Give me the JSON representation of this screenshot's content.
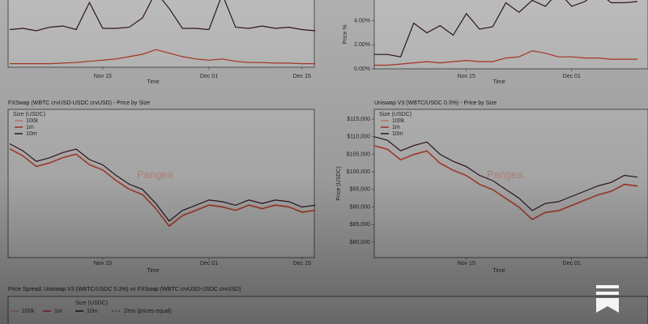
{
  "chart_data": [
    {
      "type": "line",
      "xlabel": "Time",
      "categories": [
        null,
        null,
        null,
        null,
        null,
        null,
        null,
        "Nov 15",
        null,
        null,
        null,
        null,
        null,
        null,
        null,
        "Dec 01",
        null,
        null,
        null,
        null,
        null,
        null,
        "Dec 15",
        null
      ],
      "ylim": [
        0,
        6.4
      ],
      "series": [
        {
          "name": "10m",
          "color": "#3a1a28",
          "values": [
            3.2,
            3.3,
            3.1,
            3.4,
            3.5,
            3.2,
            5.5,
            3.3,
            3.3,
            3.4,
            4.2,
            6.4,
            5.0,
            3.3,
            3.3,
            3.2,
            6.2,
            3.4,
            3.3,
            3.5,
            3.3,
            3.4,
            3.2,
            3.1
          ]
        },
        {
          "name": "1m",
          "color": "#d0402a",
          "values": [
            0.3,
            0.3,
            0.3,
            0.3,
            0.35,
            0.4,
            0.5,
            0.6,
            0.7,
            0.9,
            1.1,
            1.5,
            1.2,
            0.9,
            0.7,
            0.6,
            0.7,
            0.5,
            0.4,
            0.4,
            0.35,
            0.35,
            0.3,
            0.3
          ]
        }
      ]
    },
    {
      "type": "line",
      "xlabel": "Time",
      "ylabel": "Price %",
      "categories": [
        null,
        null,
        null,
        null,
        null,
        null,
        null,
        "Nov 15",
        null,
        null,
        null,
        null,
        null,
        null,
        null,
        "Dec 01",
        null,
        null,
        null,
        null,
        null
      ],
      "ylim": [
        0,
        6.4
      ],
      "yticks": [
        {
          "value": 0,
          "label": "0.00%"
        },
        {
          "value": 2,
          "label": "2.00%"
        },
        {
          "value": 4,
          "label": "4.00%"
        },
        {
          "value": 6,
          "label": "6.00%"
        }
      ],
      "series": [
        {
          "name": "10m",
          "color": "#3a1a28",
          "values": [
            1.2,
            1.2,
            1.0,
            3.8,
            3.0,
            3.6,
            2.8,
            4.6,
            3.3,
            3.5,
            5.5,
            4.7,
            5.7,
            5.2,
            6.4,
            5.2,
            5.6,
            6.4,
            5.5,
            5.5,
            5.6
          ]
        },
        {
          "name": "1m",
          "color": "#d0402a",
          "values": [
            0.3,
            0.3,
            0.4,
            0.5,
            0.6,
            0.5,
            0.6,
            0.7,
            0.6,
            0.6,
            0.9,
            1.0,
            1.5,
            1.3,
            1.0,
            1.0,
            0.9,
            0.9,
            0.8,
            0.8,
            0.8
          ]
        }
      ]
    },
    {
      "type": "line",
      "title": "FXSwap (WBTC crvUSD-USDC crvUSD) - Price by Size",
      "xlabel": "Time",
      "legend_title": "Size (USDC)",
      "watermark": "Pangea",
      "categories": [
        null,
        null,
        null,
        null,
        null,
        null,
        null,
        "Nov 15",
        null,
        null,
        null,
        null,
        null,
        null,
        null,
        "Dec 01",
        null,
        null,
        null,
        null,
        null,
        null,
        "Dec 15",
        null
      ],
      "ylim": [
        75600,
        117800
      ],
      "series": [
        {
          "name": "100k",
          "color": "#e8a090",
          "values": [
            106800,
            104700,
            101700,
            102700,
            104200,
            105200,
            102200,
            100700,
            97700,
            95200,
            93700,
            89700,
            84700,
            87700,
            89200,
            90700,
            90200,
            89200,
            90700,
            89700,
            90700,
            90200,
            88700,
            89200
          ]
        },
        {
          "name": "1m",
          "color": "#d0402a",
          "values": [
            106500,
            104500,
            101500,
            102500,
            104000,
            105000,
            102000,
            100500,
            97500,
            95000,
            93500,
            89500,
            84500,
            87500,
            89000,
            90500,
            90000,
            89000,
            90500,
            89500,
            90500,
            90000,
            88500,
            89000
          ]
        },
        {
          "name": "10m",
          "color": "#3a1a28",
          "values": [
            108000,
            106000,
            103000,
            104000,
            105500,
            106500,
            103500,
            102000,
            99000,
            96500,
            95000,
            91000,
            86000,
            89000,
            90500,
            92000,
            91500,
            90500,
            92000,
            91000,
            92000,
            91500,
            90000,
            90500
          ]
        }
      ]
    },
    {
      "type": "line",
      "title": "Uniswap V3 (WBTC/USDC 0.3%) - Price by Size",
      "xlabel": "Time",
      "ylabel": "Price (USDC)",
      "legend_title": "Size (USDC)",
      "watermark": "Pangea",
      "categories": [
        null,
        null,
        null,
        null,
        null,
        null,
        null,
        "Nov 15",
        null,
        null,
        null,
        null,
        null,
        null,
        null,
        "Dec 01",
        null,
        null,
        null,
        null,
        null
      ],
      "ylim": [
        75600,
        117800
      ],
      "yticks": [
        {
          "value": 80000,
          "label": "$80,000"
        },
        {
          "value": 85000,
          "label": "$85,000"
        },
        {
          "value": 90000,
          "label": "$90,000"
        },
        {
          "value": 95000,
          "label": "$95,000"
        },
        {
          "value": 100000,
          "label": "$100,000"
        },
        {
          "value": 105000,
          "label": "$105,000"
        },
        {
          "value": 110000,
          "label": "$110,000"
        },
        {
          "value": 115000,
          "label": "$115,000"
        }
      ],
      "series": [
        {
          "name": "100k",
          "color": "#e8a090",
          "values": [
            107300,
            106300,
            103300,
            104800,
            105800,
            102300,
            100300,
            98800,
            96300,
            94800,
            92300,
            89800,
            86300,
            88300,
            88800,
            90300,
            91800,
            93300,
            94300,
            96300,
            95800
          ]
        },
        {
          "name": "1m",
          "color": "#d0402a",
          "values": [
            107500,
            106500,
            103500,
            105000,
            106000,
            102500,
            100500,
            99000,
            96500,
            95000,
            92500,
            90000,
            86500,
            88500,
            89000,
            90500,
            92000,
            93500,
            94500,
            96500,
            96000
          ]
        },
        {
          "name": "10m",
          "color": "#3a1a28",
          "values": [
            110000,
            109000,
            106000,
            107500,
            108500,
            105000,
            103000,
            101500,
            99000,
            97500,
            95000,
            92500,
            89000,
            91000,
            91500,
            93000,
            94500,
            96000,
            97000,
            99000,
            98500
          ]
        }
      ]
    },
    {
      "type": "legend-only",
      "title": "Price Spread: Uniswap V3 (WBTC/USDC 0.3%) vs FXSwap (WBTC crvUSD-USDC crvUSD)",
      "legend_title": "Size (USDC)",
      "zero_line_label": "Zero (prices equal)",
      "series": [
        {
          "name": "100k",
          "color": "#e8a090"
        },
        {
          "name": "1m",
          "color": "#d0402a"
        },
        {
          "name": "10m",
          "color": "#3a1a28"
        }
      ]
    }
  ]
}
